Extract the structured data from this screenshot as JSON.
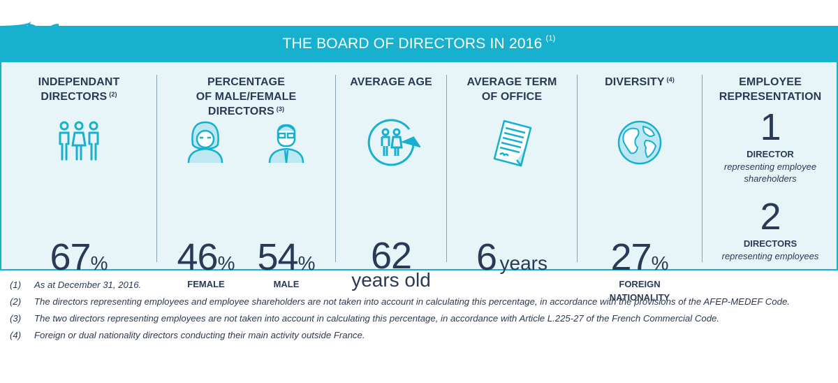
{
  "header": {
    "title": "THE BOARD OF DIRECTORS IN 2016",
    "note": "(1)"
  },
  "colors": {
    "accent": "#17b1cf",
    "panel_bg": "#e7f5f8",
    "text": "#2a3a55"
  },
  "columns": {
    "independent": {
      "title": [
        "INDEPENDANT",
        "DIRECTORS"
      ],
      "note": "(2)",
      "icon": "people-group-icon",
      "value": "67",
      "unit": "%"
    },
    "gender": {
      "title": [
        "PERCENTAGE",
        "OF MALE/FEMALE",
        "DIRECTORS"
      ],
      "note": "(3)",
      "female": {
        "icon": "female-avatar-icon",
        "value": "46",
        "unit": "%",
        "label": "FEMALE"
      },
      "male": {
        "icon": "male-avatar-icon",
        "value": "54",
        "unit": "%",
        "label": "MALE"
      }
    },
    "age": {
      "title": [
        "AVERAGE AGE"
      ],
      "icon": "age-cycle-icon",
      "value": "62",
      "unit": "years old"
    },
    "term": {
      "title": [
        "AVERAGE TERM",
        "OF OFFICE"
      ],
      "icon": "document-icon",
      "value": "6",
      "unit": "years"
    },
    "diversity": {
      "title": [
        "DIVERSITY"
      ],
      "note": "(4)",
      "icon": "globe-icon",
      "value": "27",
      "unit": "%",
      "label": [
        "FOREIGN",
        "NATIONALITY"
      ]
    },
    "employee": {
      "title": [
        "EMPLOYEE",
        "REPRESENTATION"
      ],
      "first": {
        "value": "1",
        "label": "DIRECTOR",
        "desc": [
          "representing employee",
          "shareholders"
        ]
      },
      "second": {
        "value": "2",
        "label": "DIRECTORS",
        "desc": [
          "representing employees"
        ]
      }
    }
  },
  "footnotes": [
    {
      "num": "(1)",
      "text": "As at December 31, 2016."
    },
    {
      "num": "(2)",
      "text": "The directors representing employees and employee shareholders are not taken into account in calculating this percentage, in accordance with the provisions of the AFEP-MEDEF Code."
    },
    {
      "num": "(3)",
      "text": "The two directors representing employees are not taken into account in calculating this percentage, in accordance with Article L.225-27 of the French Commercial Code."
    },
    {
      "num": "(4)",
      "text": "Foreign or dual nationality directors conducting their main activity outside France."
    }
  ]
}
